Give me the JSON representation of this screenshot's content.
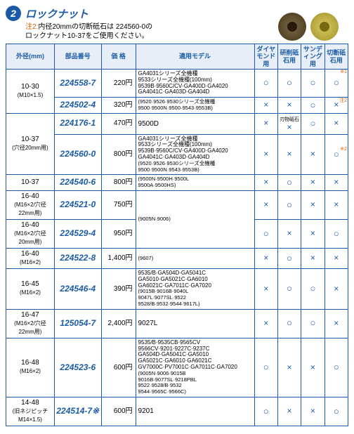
{
  "header": {
    "badge": "2",
    "title": "ロックナット",
    "note_prefix": "注2:",
    "note_line1": "内径20mmの切断砥石は 224560-0の",
    "note_line2": "ロックナット10-37をご使用ください。"
  },
  "columns": {
    "outer": "外径(mm)",
    "part": "部品番号",
    "price": "価 格",
    "model": "適用モデル",
    "use1": "ダイヤモンド用",
    "use2": "研削砥石用",
    "use3": "サンディング用",
    "use4": "切断砥石用"
  },
  "side_notes": {
    "n1": "※1",
    "n2": "注2",
    "n3": "※2",
    "blade": "刃物砥石"
  },
  "rows": [
    {
      "outer": "10-30",
      "outer_sub": "(M10×1.5)",
      "outer_rowspan": 2,
      "part": "224558-7",
      "price": "220円",
      "model": "GA4031シリーズ全機種<br>9533シリーズ全機種(100mm)<br>9539B·9560C/CV·GA400D·GA4020<br>GA4041C·GA403D·GA404D",
      "u": [
        "○",
        "○",
        "○",
        "○"
      ]
    },
    {
      "part": "224502-4",
      "price": "320円",
      "model": "<span class='paren'>(9520·9526·9530シリーズ全機種<br>9500·9500N·9500·9543·9553B)</span>",
      "u": [
        "×",
        "×",
        "○",
        "×"
      ]
    },
    {
      "outer": "10-37",
      "outer_sub": "(穴径20mm用)",
      "outer_rowspan": 2,
      "part": "224176-1",
      "price": "470円",
      "model": "<span class='big'>9500D</span>",
      "u": [
        "×",
        "_blade",
        "○",
        "×"
      ]
    },
    {
      "part": "224560-0",
      "price": "800円",
      "model": "GA4031シリーズ全機種<br>9533シリーズ全機種(100mm)<br>9539B·9560C/CV·GA400D·GA4020<br>GA4041C·GA403D·GA404D<br><span class='paren'>(9520·9526·9530シリーズ全機種 9500·9500N·9543·9553B)</span>",
      "u": [
        "×",
        "×",
        "×",
        "○"
      ]
    },
    {
      "outer": "10-37",
      "outer_sub": "",
      "outer_rowspan": 1,
      "part": "224540-6",
      "price": "800円",
      "model": "<span class='paren'>(9500N·9500H·9500L<br>9500A·9500HS)</span>",
      "u": [
        "×",
        "○",
        "×",
        "×"
      ]
    },
    {
      "outer": "16-40",
      "outer_sub": "(M16×2/穴径22mm用)",
      "outer_rowspan": 1,
      "part": "224521-0",
      "price": "750円",
      "model_rowspan": 2,
      "model": "<span class='paren'>(9005N·9006)</span>",
      "u": [
        "×",
        "○",
        "×",
        "×"
      ]
    },
    {
      "outer": "16-40",
      "outer_sub": "(M16×2/穴径20mm用)",
      "outer_rowspan": 1,
      "part": "224529-4",
      "price": "950円",
      "u": [
        "○",
        "×",
        "×",
        "○"
      ]
    },
    {
      "outer": "16-40",
      "outer_sub": "(M16×2)",
      "outer_rowspan": 1,
      "part": "224522-8",
      "price": "1,400円",
      "model": "<span class='paren'>(9607)</span>",
      "u": [
        "×",
        "○",
        "×",
        "×"
      ]
    },
    {
      "outer": "16-45",
      "outer_sub": "(M16×2)",
      "outer_rowspan": 1,
      "part": "224546-4",
      "price": "390円",
      "model": "9535/B·GA504D·GA5041C<br>GA5010·GA5021C·GA6010<br>GA6021C·GA7011C·GA7020<br><span class='paren'>(9015B·9016B·9040L<br>9047L·9077SL·9522<br>9528/B·9532·9544·9617L)</span>",
      "u": [
        "×",
        "○",
        "○",
        "×"
      ]
    },
    {
      "outer": "16-47",
      "outer_sub": "(M16×2/穴径22mm用)",
      "outer_rowspan": 1,
      "part": "125054-7",
      "price": "2,400円",
      "model": "<span class='big'>9027L</span>",
      "u": [
        "×",
        "○",
        "○",
        "×"
      ]
    },
    {
      "outer": "16-48",
      "outer_sub": "(M16×2)",
      "outer_rowspan": 1,
      "part": "224523-6",
      "price": "600円",
      "model": "9535/B·9535CB·9565CV<br>9566CV·9201·9227C·9237C<br>GA504D·GA5041C·GA5010<br>GA5021C·GA6010·GA6021C<br>GV7000C·PV7001C·GA7011C·GA7020<br><span class='paren'>(9005N·9006·9015B<br>9016B·9077SL·9218PBL<br>9522·9528/B·9532<br>9544·9565C·9566C)</span>",
      "u": [
        "○",
        "×",
        "×",
        "○"
      ]
    },
    {
      "outer": "14-48",
      "outer_sub": "(旧ネジピッチM14×1.5)",
      "outer_rowspan": 1,
      "part": "224514-7※",
      "price": "600円",
      "model": "<span class='big'>9201</span>",
      "u": [
        "○",
        "×",
        "×",
        "○"
      ]
    }
  ],
  "marks": {
    "circle": "○",
    "cross": "×"
  }
}
